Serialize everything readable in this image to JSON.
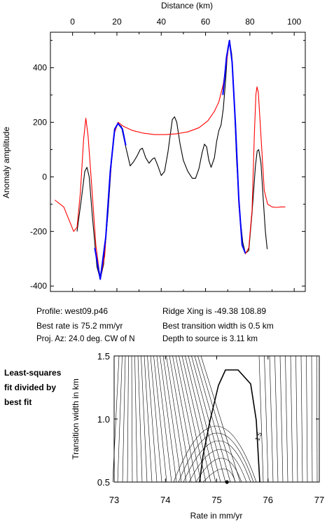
{
  "info": {
    "profile": "Profile: west09.p46",
    "best_rate": "Best rate is 75.2 mm/yr",
    "proj_az": "Proj. Az: 24.0 deg. CW of N",
    "ridge_xing": "Ridge Xing is -49.38 108.89",
    "best_width": "Best transition width is 0.5 km",
    "depth": "Depth to source is   3.11 km"
  },
  "side_note": [
    "Least-squares",
    "fit divided by",
    "best fit"
  ],
  "colors": {
    "observed": "#000000",
    "model": "#ff0000",
    "fit_segment": "#0000ff",
    "contour": "#000000"
  },
  "chart_data": [
    {
      "type": "line",
      "title": "",
      "xlabel": "Distance (km)",
      "ylabel": "Anomaly amplitude",
      "xlim": [
        -10,
        105
      ],
      "ylim": [
        -420,
        530
      ],
      "x_ticks": [
        0,
        20,
        40,
        60,
        80,
        100
      ],
      "y_ticks": [
        -400,
        -200,
        0,
        200,
        400
      ],
      "x_axis_position": "top",
      "grid": false,
      "series": [
        {
          "color": "#000000",
          "points": [
            [
              2,
              -200
            ],
            [
              4,
              -80
            ],
            [
              5.5,
              20
            ],
            [
              6.5,
              35
            ],
            [
              7.5,
              0
            ],
            [
              9,
              -150
            ],
            [
              11,
              -330
            ],
            [
              12.5,
              -375
            ],
            [
              14,
              -320
            ],
            [
              16,
              -130
            ],
            [
              17.5,
              50
            ],
            [
              19,
              170
            ],
            [
              20.5,
              195
            ],
            [
              22,
              185
            ],
            [
              24,
              110
            ],
            [
              26,
              40
            ],
            [
              27.5,
              55
            ],
            [
              29,
              75
            ],
            [
              30.5,
              100
            ],
            [
              31.5,
              105
            ],
            [
              33,
              70
            ],
            [
              34.5,
              50
            ],
            [
              36,
              65
            ],
            [
              37,
              70
            ],
            [
              38.5,
              40
            ],
            [
              40,
              5
            ],
            [
              41.5,
              20
            ],
            [
              43,
              90
            ],
            [
              45,
              210
            ],
            [
              46,
              220
            ],
            [
              47,
              200
            ],
            [
              48.5,
              120
            ],
            [
              50,
              60
            ],
            [
              52,
              20
            ],
            [
              54,
              -5
            ],
            [
              55.5,
              -5
            ],
            [
              57,
              30
            ],
            [
              58.5,
              90
            ],
            [
              59.5,
              120
            ],
            [
              60.5,
              110
            ],
            [
              61.5,
              60
            ],
            [
              62.5,
              35
            ],
            [
              64,
              70
            ],
            [
              65,
              130
            ],
            [
              66,
              170
            ],
            [
              67,
              190
            ],
            [
              68,
              250
            ],
            [
              69,
              350
            ],
            [
              70,
              470
            ],
            [
              70.8,
              500
            ],
            [
              71.8,
              450
            ],
            [
              72.8,
              300
            ],
            [
              74,
              60
            ],
            [
              75.5,
              -140
            ],
            [
              76.8,
              -240
            ],
            [
              78,
              -280
            ],
            [
              79.5,
              -270
            ],
            [
              81,
              -130
            ],
            [
              82.5,
              40
            ],
            [
              83.3,
              95
            ],
            [
              84,
              100
            ],
            [
              85,
              50
            ],
            [
              86,
              -80
            ],
            [
              87,
              -200
            ],
            [
              87.8,
              -265
            ]
          ]
        },
        {
          "color": "#ff0000",
          "points": [
            [
              -8,
              -85
            ],
            [
              -4,
              -110
            ],
            [
              -1,
              -170
            ],
            [
              0.5,
              -200
            ],
            [
              2,
              -185
            ],
            [
              3.5,
              -60
            ],
            [
              5,
              140
            ],
            [
              6,
              215
            ],
            [
              7,
              150
            ],
            [
              8.5,
              -20
            ],
            [
              10.5,
              -250
            ],
            [
              12.5,
              -375
            ],
            [
              14.5,
              -290
            ],
            [
              16.5,
              -50
            ],
            [
              18.5,
              150
            ],
            [
              20.5,
              200
            ],
            [
              23,
              185
            ],
            [
              27,
              170
            ],
            [
              32,
              160
            ],
            [
              37,
              155
            ],
            [
              42,
              155
            ],
            [
              47,
              158
            ],
            [
              52,
              165
            ],
            [
              57,
              180
            ],
            [
              61,
              205
            ],
            [
              64,
              240
            ],
            [
              66,
              275
            ],
            [
              68,
              340
            ],
            [
              69.5,
              420
            ],
            [
              70.8,
              500
            ],
            [
              72,
              430
            ],
            [
              73.5,
              200
            ],
            [
              75,
              -100
            ],
            [
              76.5,
              -250
            ],
            [
              78,
              -282
            ],
            [
              79.5,
              -260
            ],
            [
              81,
              -120
            ],
            [
              82,
              150
            ],
            [
              82.7,
              300
            ],
            [
              83.2,
              330
            ],
            [
              83.8,
              310
            ],
            [
              85,
              150
            ],
            [
              86.5,
              -50
            ],
            [
              88,
              -100
            ],
            [
              90,
              -110
            ],
            [
              92,
              -112
            ],
            [
              94,
              -110
            ],
            [
              96,
              -110
            ]
          ]
        },
        {
          "color": "#0000ff",
          "points": [
            [
              10,
              -260
            ],
            [
              12.5,
              -375
            ],
            [
              15,
              -220
            ],
            [
              17,
              20
            ],
            [
              19,
              175
            ],
            [
              20.5,
              196
            ],
            [
              22.5,
              175
            ],
            [
              24,
              115
            ]
          ]
        },
        {
          "color": "#0000ff",
          "points": [
            [
              67.8,
              300
            ],
            [
              69.5,
              440
            ],
            [
              70.8,
              500
            ],
            [
              72,
              420
            ],
            [
              73.5,
              190
            ],
            [
              75,
              -80
            ],
            [
              76.5,
              -250
            ],
            [
              78,
              -280
            ]
          ]
        }
      ]
    },
    {
      "type": "contour",
      "title": "",
      "xlabel": "Rate in mm/yr",
      "ylabel": "Transition width in km",
      "xlim": [
        73,
        77
      ],
      "ylim": [
        0.5,
        1.5
      ],
      "x_ticks": [
        73,
        74,
        75,
        76,
        77
      ],
      "y_ticks": [
        0.5,
        1.0,
        1.5
      ],
      "x_tick_labels": [
        "73",
        "74",
        "75",
        "76",
        "77"
      ],
      "y_tick_labels": [
        "0.5",
        "1.0",
        "1.5"
      ],
      "contour_label": "1.5",
      "best_fit_point": [
        75.2,
        0.5
      ]
    }
  ]
}
